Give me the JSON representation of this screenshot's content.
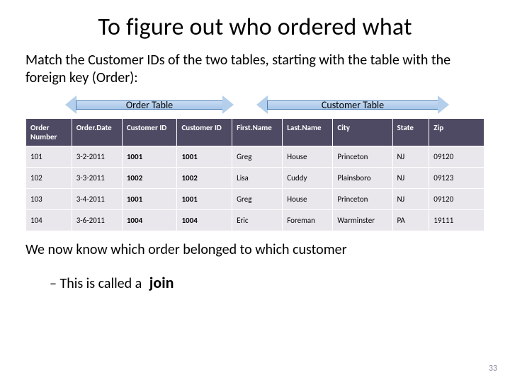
{
  "title": "To figure out who ordered what",
  "subtitle": "Match the Customer IDs of the two tables, starting with the table with the foreign key (Order):",
  "arrow_labels": {
    "order": "Order Table",
    "customer": "Customer Table"
  },
  "table": {
    "columns": [
      "Order Number",
      "Order.Date",
      "Customer ID",
      "Customer ID",
      "First.Name",
      "Last.Name",
      "City",
      "State",
      "Zip"
    ],
    "col_widths_pct": [
      10,
      11,
      12,
      12,
      11,
      11,
      13,
      8,
      12
    ],
    "bold_cols": [
      2,
      3
    ],
    "header_bg": "#4f4a63",
    "header_fg": "#ffffff",
    "row_bg": "#e9e7ec",
    "rows": [
      [
        "101",
        "3-2-2011",
        "1001",
        "1001",
        "Greg",
        "House",
        "Princeton",
        "NJ",
        "09120"
      ],
      [
        "102",
        "3-3-2011",
        "1002",
        "1002",
        "Lisa",
        "Cuddy",
        "Plainsboro",
        "NJ",
        "09123"
      ],
      [
        "103",
        "3-4-2011",
        "1001",
        "1001",
        "Greg",
        "House",
        "Princeton",
        "NJ",
        "09120"
      ],
      [
        "104",
        "3-6-2011",
        "1004",
        "1004",
        "Eric",
        "Foreman",
        "Warminster",
        "PA",
        "19111"
      ]
    ]
  },
  "footer_line1": "We now know which order belonged to which customer",
  "footer_sub_prefix": "– This is called a ",
  "footer_sub_join": "join",
  "page_number": "33",
  "arrow_style": {
    "border_color": "#4a7db8",
    "fill_top": "#c7dbf2",
    "fill_bottom": "#a8c6e8",
    "head_fill": "#b3cfeb"
  }
}
